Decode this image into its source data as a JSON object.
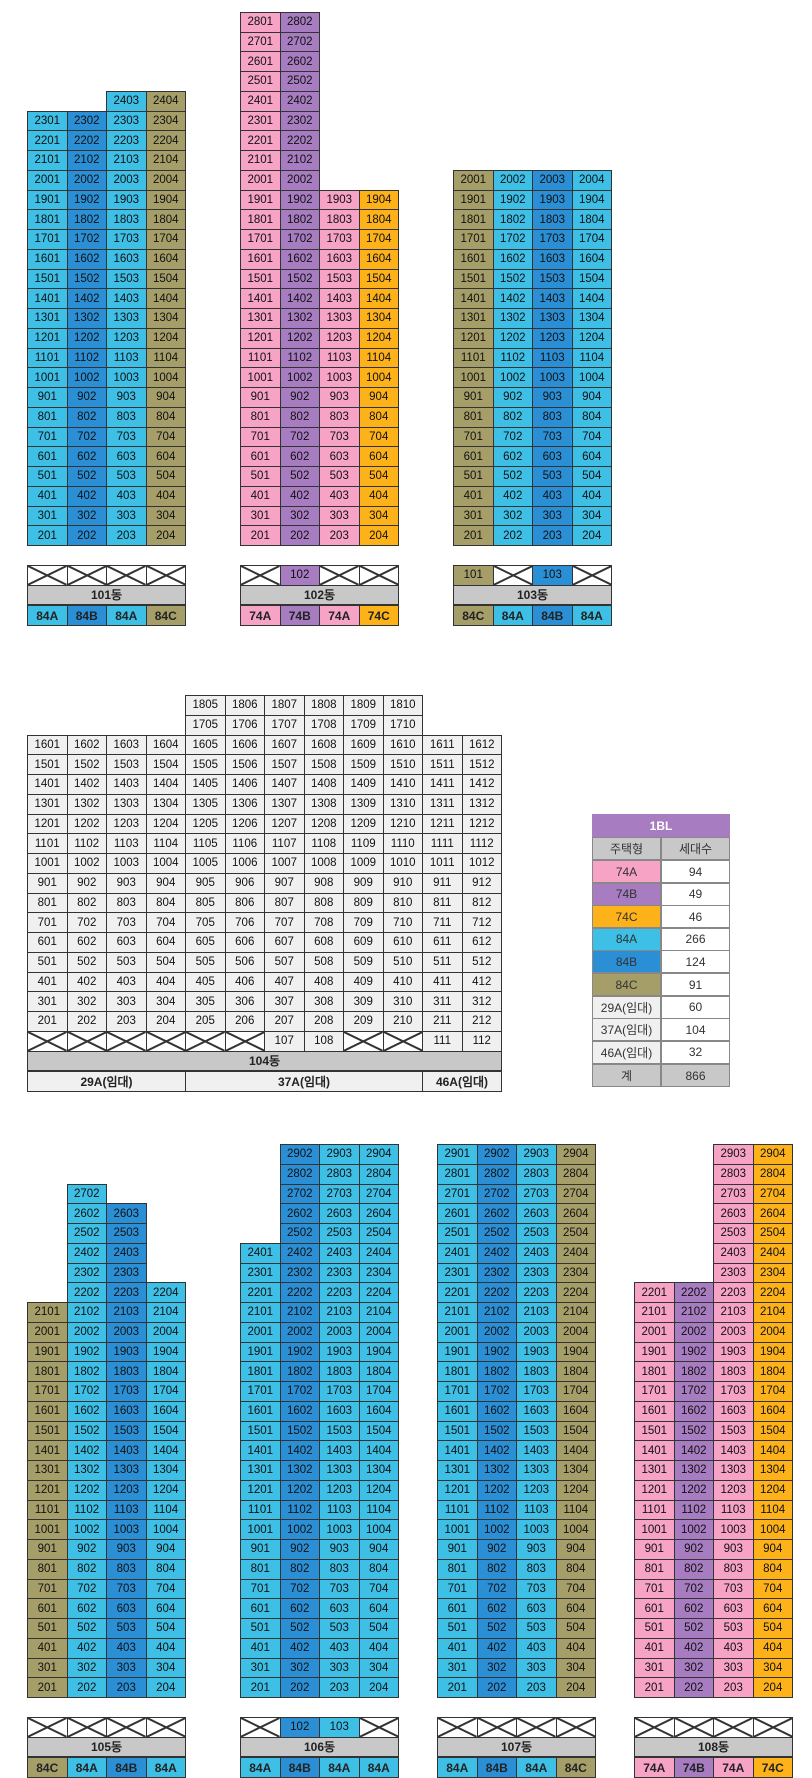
{
  "colors": {
    "74A": "#f7a3c5",
    "74B": "#a77cc0",
    "74C": "#fdb21a",
    "84A": "#3dbfe6",
    "84B": "#2b8fd6",
    "84C": "#a59e69",
    "gray": "#f0f0f0",
    "bar": "#c8c8c8"
  },
  "buildings": [
    {
      "id": "101",
      "label": "101동",
      "units": 4,
      "types": [
        "84A",
        "84B",
        "84A",
        "84C"
      ],
      "floors": [
        [
          23,
          "0111"
        ],
        [
          24,
          "0011"
        ],
        [
          22,
          "1111"
        ],
        [
          20,
          "1111"
        ],
        [
          19,
          "1111"
        ],
        [
          2,
          "1111"
        ]
      ],
      "first": "0000"
    },
    {
      "id": "102",
      "label": "102동",
      "units": 4,
      "types": [
        "74A",
        "74B",
        "74A",
        "74C"
      ],
      "first": "0100"
    },
    {
      "id": "103",
      "label": "103동",
      "units": 4,
      "types": [
        "84C",
        "84A",
        "84B",
        "84A"
      ],
      "first": "1010"
    },
    {
      "id": "104",
      "label": "104동",
      "units": 12,
      "typeLabels": [
        "29A(임대)",
        "37A(임대)",
        "46A(임대)"
      ],
      "first": "000000110011"
    },
    {
      "id": "105",
      "label": "105동",
      "units": 4,
      "types": [
        "84C",
        "84A",
        "84B",
        "84A"
      ],
      "first": "0000"
    },
    {
      "id": "106",
      "label": "106동",
      "units": 4,
      "types": [
        "84A",
        "84B",
        "84A",
        "84A"
      ],
      "first": "0110"
    },
    {
      "id": "107",
      "label": "107동",
      "units": 4,
      "types": [
        "84A",
        "84B",
        "84A",
        "84C"
      ],
      "first": "0000"
    },
    {
      "id": "108",
      "label": "108동",
      "units": 4,
      "types": [
        "74A",
        "74B",
        "74A",
        "74C"
      ],
      "first": "0000"
    }
  ],
  "legend": {
    "title": "1BL",
    "headers": [
      "주택형",
      "세대수"
    ],
    "rows": [
      {
        "type": "74A",
        "count": "94",
        "color": "#f7a3c5"
      },
      {
        "type": "74B",
        "count": "49",
        "color": "#a77cc0"
      },
      {
        "type": "74C",
        "count": "46",
        "color": "#fdb21a"
      },
      {
        "type": "84A",
        "count": "266",
        "color": "#3dbfe6"
      },
      {
        "type": "84B",
        "count": "124",
        "color": "#2b8fd6"
      },
      {
        "type": "84C",
        "count": "91",
        "color": "#a59e69"
      },
      {
        "type": "29A(임대)",
        "count": "60",
        "color": "#f0f0f0"
      },
      {
        "type": "37A(임대)",
        "count": "104",
        "color": "#f0f0f0"
      },
      {
        "type": "46A(임대)",
        "count": "32",
        "color": "#f0f0f0"
      }
    ],
    "total_label": "계",
    "total": "866"
  }
}
